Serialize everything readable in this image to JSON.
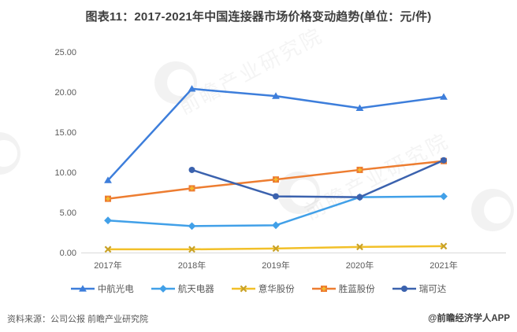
{
  "title": "图表11：2017-2021年中国连接器市场价格变动趋势(单位：元/件)",
  "footer": {
    "source": "资料来源：公司公报 前瞻产业研究院",
    "brand": "@前瞻经济学人APP"
  },
  "watermark": {
    "text": "前瞻产业研究院"
  },
  "chart_data": {
    "type": "line",
    "categories": [
      "2017年",
      "2018年",
      "2019年",
      "2020年",
      "2021年"
    ],
    "series": [
      {
        "name": "中航光电",
        "color": "#3d7edb",
        "marker": "triangle",
        "values": [
          9.0,
          20.4,
          19.5,
          18.0,
          19.4
        ]
      },
      {
        "name": "航天电器",
        "color": "#41a0e8",
        "marker": "diamond",
        "values": [
          4.0,
          3.3,
          3.4,
          6.9,
          7.0
        ]
      },
      {
        "name": "意华股份",
        "color": "#f2c029",
        "marker": "x",
        "marker_color": "#c9a227",
        "values": [
          0.4,
          0.4,
          0.5,
          0.7,
          0.8
        ]
      },
      {
        "name": "胜蓝股份",
        "color": "#ed7d31",
        "marker": "square-plus",
        "marker_color": "#f2c029",
        "values": [
          6.7,
          8.0,
          9.1,
          10.3,
          11.4
        ]
      },
      {
        "name": "瑞可达",
        "color": "#3b62ae",
        "marker": "circle",
        "values": [
          null,
          10.3,
          7.0,
          6.9,
          11.5
        ]
      }
    ],
    "y_ticks": [
      "0.00",
      "5.00",
      "10.00",
      "15.00",
      "20.00",
      "25.00"
    ],
    "ylim": [
      0,
      25
    ],
    "xlabel": "",
    "ylabel": "",
    "grid": false,
    "legend_position": "bottom",
    "axis_color": "#d9d9d9",
    "tick_color": "#595959"
  }
}
